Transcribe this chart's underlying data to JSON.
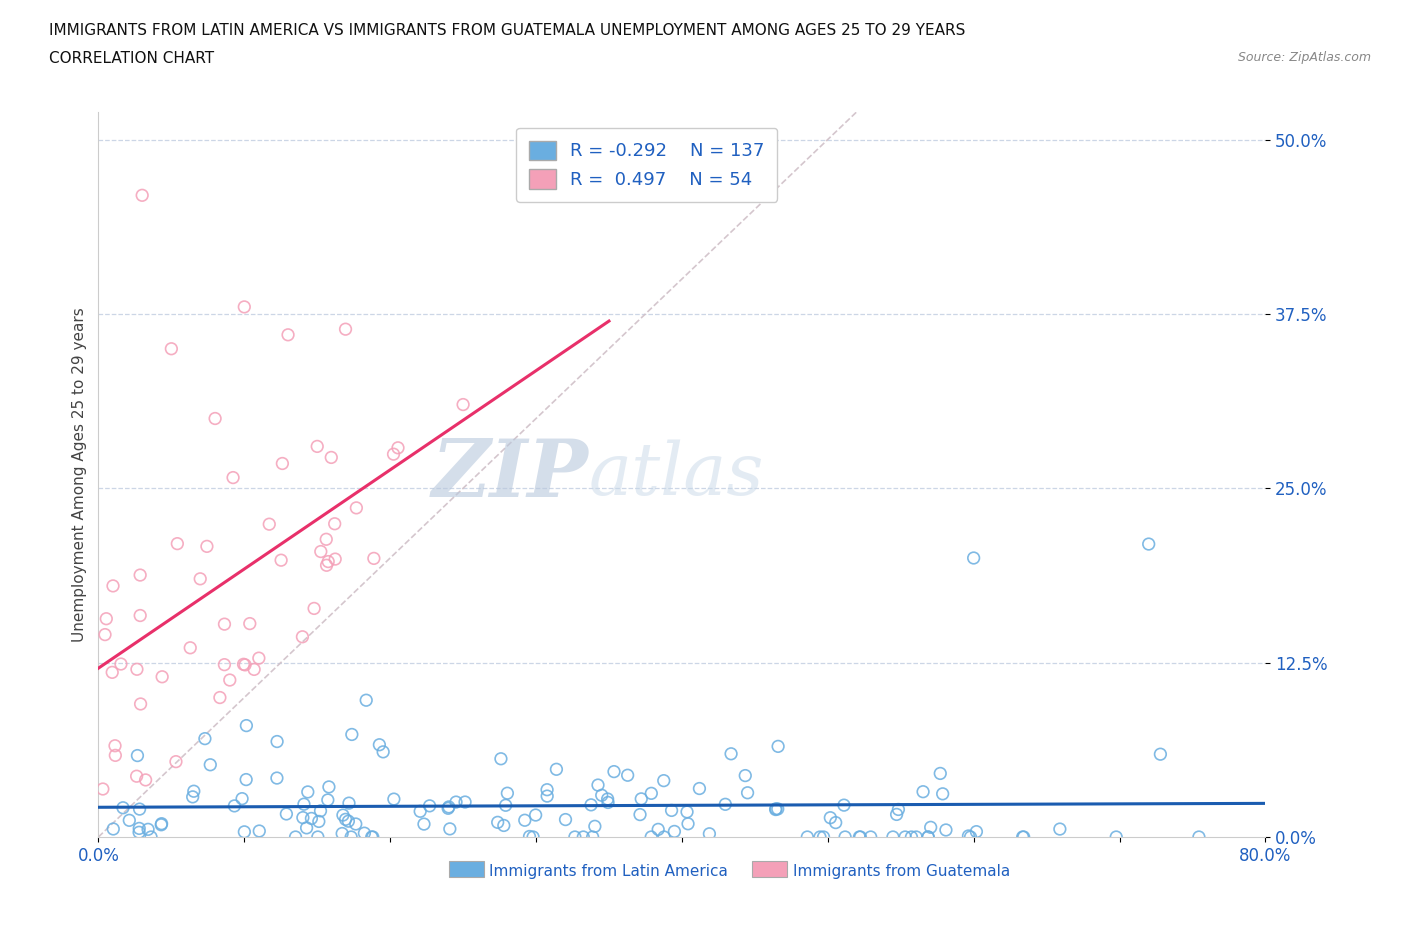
{
  "title_line1": "IMMIGRANTS FROM LATIN AMERICA VS IMMIGRANTS FROM GUATEMALA UNEMPLOYMENT AMONG AGES 25 TO 29 YEARS",
  "title_line2": "CORRELATION CHART",
  "source_text": "Source: ZipAtlas.com",
  "ylabel": "Unemployment Among Ages 25 to 29 years",
  "legend_label1": "Immigrants from Latin America",
  "legend_label2": "Immigrants from Guatemala",
  "R1": -0.292,
  "N1": 137,
  "R2": 0.497,
  "N2": 54,
  "color1": "#6aaee0",
  "color2": "#f4a0b8",
  "line_color1": "#1a5cb0",
  "line_color2": "#e8306a",
  "diagonal_color": "#d0c0c8",
  "watermark_zip": "ZIP",
  "watermark_atlas": "atlas",
  "xlim": [
    0.0,
    0.8
  ],
  "ylim": [
    0.0,
    0.52
  ],
  "ytick_positions": [
    0.0,
    0.125,
    0.25,
    0.375,
    0.5
  ],
  "ytick_labels": [
    "0.0%",
    "12.5%",
    "25.0%",
    "37.5%",
    "50.0%"
  ],
  "background_color": "#ffffff",
  "title_color": "#111111",
  "tick_color": "#2060c0",
  "grid_color": "#c0cce0",
  "spine_color": "#cccccc"
}
